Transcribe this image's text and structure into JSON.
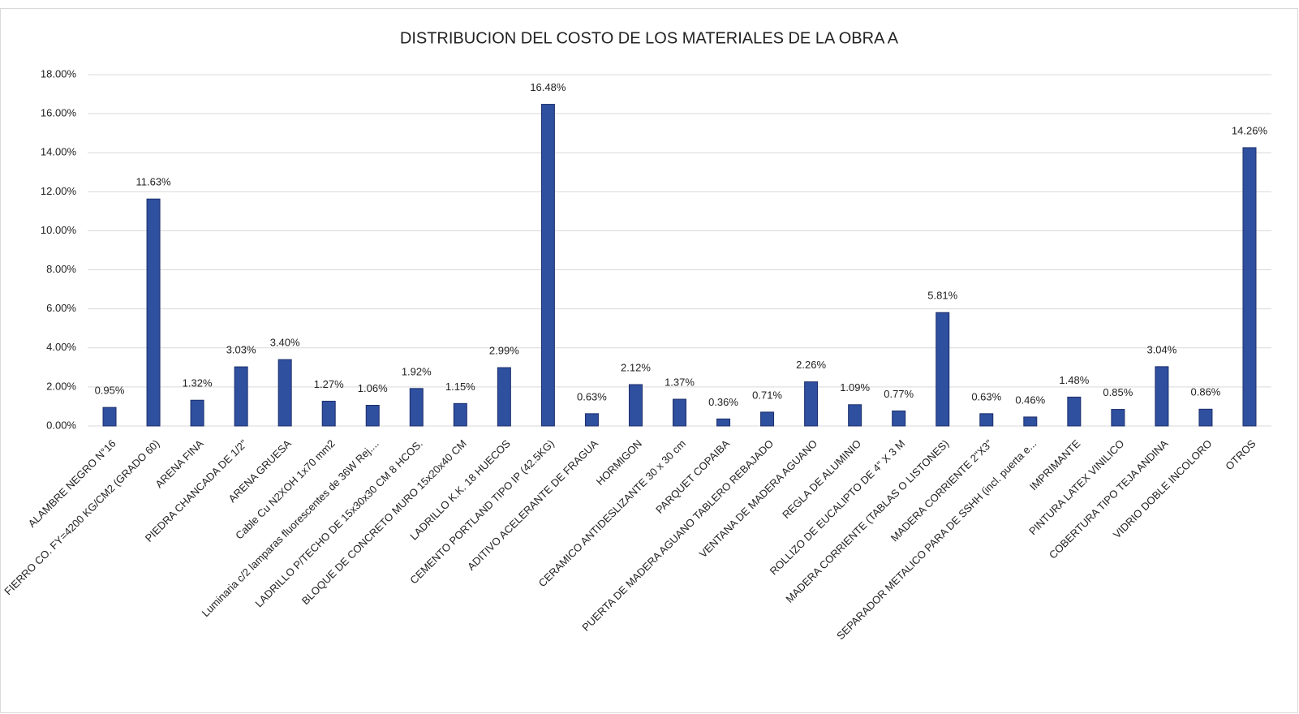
{
  "chart_data": {
    "type": "bar",
    "title": "DISTRIBUCION DEL COSTO DE LOS MATERIALES DE LA OBRA A",
    "categories": [
      "ALAMBRE NEGRO N°16",
      "FIERRO CO. FY=4200 KG/CM2 (GRADO 60)",
      "ARENA FINA",
      "PIEDRA CHANCADA DE 1/2\"",
      "ARENA GRUESA",
      "Cable Cu N2XOH 1x70 mm2",
      "Luminaria c/2 lamparas fluorescentes de 36W Rej....",
      "LADRILLO P/TECHO DE 15x30x30 CM 8 HCOS.",
      "BLOQUE DE CONCRETO MURO 15x20x40 CM",
      "LADRILLO K.K. 18 HUECOS",
      "CEMENTO PORTLAND TIPO IP (42.5KG)",
      "ADITIVO ACELERANTE DE FRAGUA",
      "HORMIGON",
      "CERAMICO ANTIDESLIZANTE 30 x 30 cm",
      "PARQUET COPAIBA",
      "PUERTA DE MADERA AGUANO TABLERO REBAJADO",
      "VENTANA DE MADERA AGUANO",
      "REGLA DE ALUMINIO",
      "ROLLIZO DE EUCALIPTO DE 4\" X 3 M",
      "MADERA CORRIENTE (TABLAS O LISTONES)",
      "MADERA CORRIENTE 2\"X3\"",
      "SEPARADOR METALICO PARA DE SSHH (incl. puerta e...",
      "IMPRIMANTE",
      "PINTURA LATEX VINILICO",
      "COBERTURA TIPO TEJA ANDINA",
      "VIDRIO DOBLE INCOLORO",
      "OTROS"
    ],
    "values": [
      0.95,
      11.63,
      1.32,
      3.03,
      3.4,
      1.27,
      1.06,
      1.92,
      1.15,
      2.99,
      16.48,
      0.63,
      2.12,
      1.37,
      0.36,
      0.71,
      2.26,
      1.09,
      0.77,
      5.81,
      0.63,
      0.46,
      1.48,
      0.85,
      3.04,
      0.86,
      14.26
    ],
    "value_labels": [
      "0.95%",
      "11.63%",
      "1.32%",
      "3.03%",
      "3.40%",
      "1.27%",
      "1.06%",
      "1.92%",
      "1.15%",
      "2.99%",
      "16.48%",
      "0.63%",
      "2.12%",
      "1.37%",
      "0.36%",
      "0.71%",
      "2.26%",
      "1.09%",
      "0.77%",
      "5.81%",
      "0.63%",
      "0.46%",
      "1.48%",
      "0.85%",
      "3.04%",
      "0.86%",
      "14.26%"
    ],
    "color": "#2f4f9f",
    "ylim": [
      0,
      18
    ],
    "yticks": [
      {
        "value": 0,
        "label": "0.00%"
      },
      {
        "value": 2,
        "label": "2.00%"
      },
      {
        "value": 4,
        "label": "4.00%"
      },
      {
        "value": 6,
        "label": "6.00%"
      },
      {
        "value": 8,
        "label": "8.00%"
      },
      {
        "value": 10,
        "label": "10.00%"
      },
      {
        "value": 12,
        "label": "12.00%"
      },
      {
        "value": 14,
        "label": "14.00%"
      },
      {
        "value": 16,
        "label": "16.00%"
      },
      {
        "value": 18,
        "label": "18.00%"
      }
    ],
    "grid": true
  }
}
